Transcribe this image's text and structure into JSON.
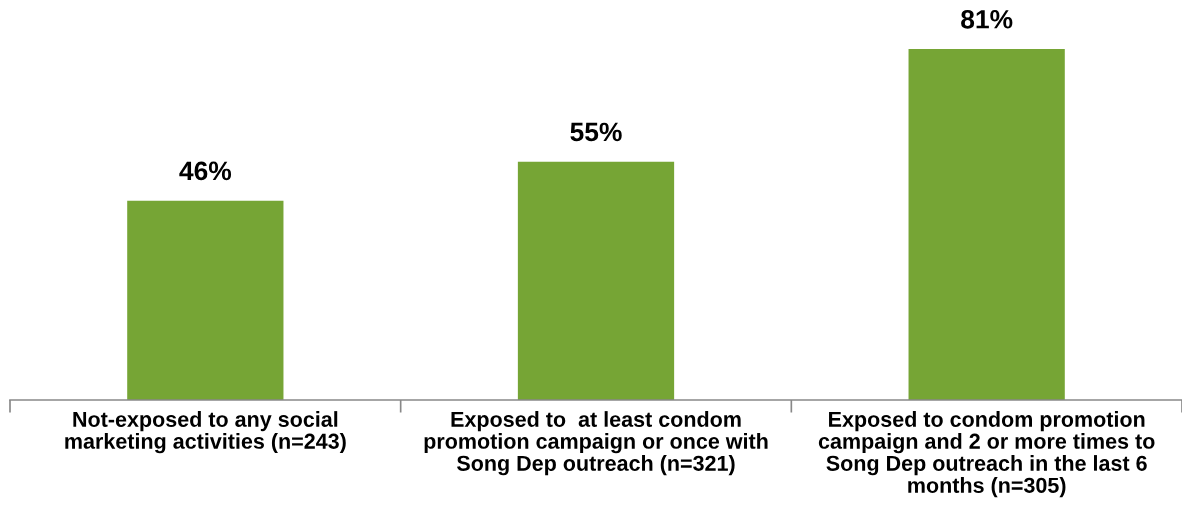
{
  "chart_data": {
    "type": "bar",
    "categories": [
      "Not-exposed to any social\nmarketing activities (n=243)",
      "Exposed to  at least condom\npromotion campaign or once with\nSong Dep outreach (n=321)",
      "Exposed to condom promotion\ncampaign and 2 or more times to\nSong Dep outreach in the last 6\nmonths (n=305)"
    ],
    "values": [
      46,
      55,
      81
    ],
    "value_labels": [
      "46%",
      "55%",
      "81%"
    ],
    "color": "#76a535",
    "grid": false,
    "legend": false
  }
}
